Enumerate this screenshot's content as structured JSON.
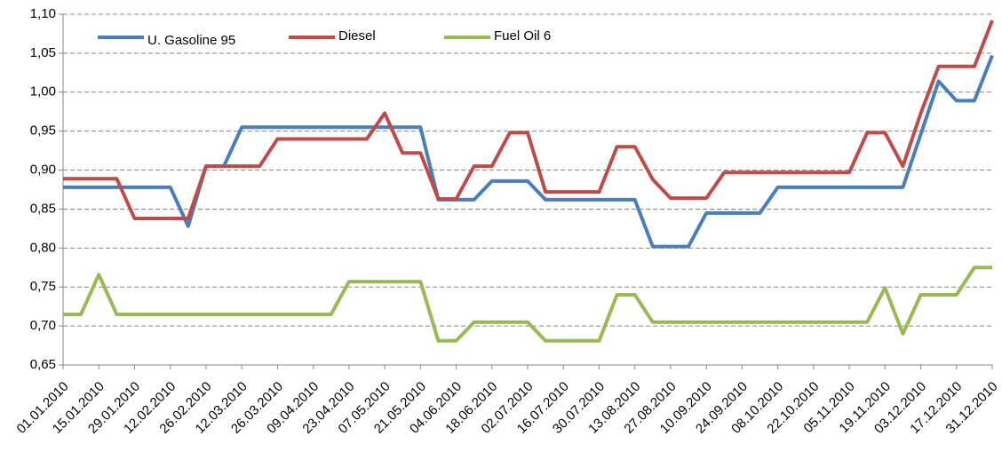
{
  "chart_data": {
    "type": "line",
    "categories": [
      "01.01.2010",
      null,
      "15.01.2010",
      null,
      "29.01.2010",
      null,
      "12.02.2010",
      null,
      "26.02.2010",
      null,
      "12.03.2010",
      null,
      "26.03.2010",
      null,
      "09.04.2010",
      null,
      "23.04.2010",
      null,
      "07.05.2010",
      null,
      "21.05.2010",
      null,
      "04.06.2010",
      null,
      "18.06.2010",
      null,
      "02.07.2010",
      null,
      "16.07.2010",
      null,
      "30.07.2010",
      null,
      "13.08.2010",
      null,
      "27.08.2010",
      null,
      "10.09.2010",
      null,
      "24.09.2010",
      null,
      "08.10.2010",
      null,
      "22.10.2010",
      null,
      "05.11.2010",
      null,
      "19.11.2010",
      null,
      "03.12.2010",
      null,
      "17.12.2010",
      null,
      "31.12.2010"
    ],
    "series": [
      {
        "name": "U. Gasoline 95",
        "color": "#4a7ebb",
        "values": [
          0.878,
          0.878,
          0.878,
          0.878,
          0.878,
          0.878,
          0.878,
          0.828,
          0.905,
          0.905,
          0.955,
          0.955,
          0.955,
          0.955,
          0.955,
          0.955,
          0.955,
          0.955,
          0.955,
          0.955,
          0.955,
          0.862,
          0.862,
          0.862,
          0.886,
          0.886,
          0.886,
          0.862,
          0.862,
          0.862,
          0.862,
          0.862,
          0.862,
          0.802,
          0.802,
          0.802,
          0.845,
          0.845,
          0.845,
          0.845,
          0.878,
          0.878,
          0.878,
          0.878,
          0.878,
          0.878,
          0.878,
          0.878,
          0.946,
          1.014,
          0.989,
          0.989,
          1.047
        ]
      },
      {
        "name": "Diesel",
        "color": "#be4b48",
        "values": [
          0.889,
          0.889,
          0.889,
          0.889,
          0.838,
          0.838,
          0.838,
          0.838,
          0.905,
          0.905,
          0.905,
          0.905,
          0.94,
          0.94,
          0.94,
          0.94,
          0.94,
          0.94,
          0.973,
          0.922,
          0.922,
          0.863,
          0.863,
          0.905,
          0.905,
          0.948,
          0.948,
          0.872,
          0.872,
          0.872,
          0.872,
          0.93,
          0.93,
          0.888,
          0.864,
          0.864,
          0.864,
          0.897,
          0.897,
          0.897,
          0.897,
          0.897,
          0.897,
          0.897,
          0.897,
          0.948,
          0.948,
          0.905,
          0.973,
          1.033,
          1.033,
          1.033,
          1.092
        ]
      },
      {
        "name": "Fuel Oil 6",
        "color": "#98b954",
        "values": [
          0.715,
          0.715,
          0.766,
          0.715,
          0.715,
          0.715,
          0.715,
          0.715,
          0.715,
          0.715,
          0.715,
          0.715,
          0.715,
          0.715,
          0.715,
          0.715,
          0.757,
          0.757,
          0.757,
          0.757,
          0.757,
          0.681,
          0.681,
          0.705,
          0.705,
          0.705,
          0.705,
          0.681,
          0.681,
          0.681,
          0.681,
          0.74,
          0.74,
          0.705,
          0.705,
          0.705,
          0.705,
          0.705,
          0.705,
          0.705,
          0.705,
          0.705,
          0.705,
          0.705,
          0.705,
          0.705,
          0.749,
          0.69,
          0.74,
          0.74,
          0.74,
          0.775,
          0.775
        ]
      }
    ],
    "ylim": [
      0.65,
      1.1
    ],
    "yticks": [
      {
        "value": 0.65,
        "label": "0,65"
      },
      {
        "value": 0.7,
        "label": "0,70"
      },
      {
        "value": 0.75,
        "label": "0,75"
      },
      {
        "value": 0.8,
        "label": "0,80"
      },
      {
        "value": 0.85,
        "label": "0,85"
      },
      {
        "value": 0.9,
        "label": "0,90"
      },
      {
        "value": 0.95,
        "label": "0,95"
      },
      {
        "value": 1.0,
        "label": "1,00"
      },
      {
        "value": 1.05,
        "label": "1,05"
      },
      {
        "value": 1.1,
        "label": "1,10"
      }
    ],
    "grid": true,
    "legend": "top"
  }
}
